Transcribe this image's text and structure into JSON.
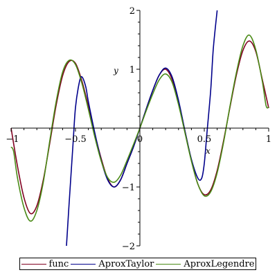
{
  "chart_data": {
    "type": "line",
    "xlabel": "x",
    "ylabel": "y",
    "xlim": [
      -1,
      1
    ],
    "ylim": [
      -2,
      2
    ],
    "xticks": [
      {
        "value": -1,
        "label": "−1"
      },
      {
        "value": -0.5,
        "label": "−0.5"
      },
      {
        "value": 0,
        "label": "0"
      },
      {
        "value": 0.5,
        "label": "0.5"
      },
      {
        "value": 1,
        "label": "1"
      }
    ],
    "yticks": [
      {
        "value": -2,
        "label": "−2"
      },
      {
        "value": -1,
        "label": "−1"
      },
      {
        "value": 1,
        "label": "1"
      },
      {
        "value": 2,
        "label": "2"
      }
    ],
    "legend_position": "bottom",
    "series": [
      {
        "name": "func",
        "color": "#800020",
        "x": [
          -1,
          -0.95,
          -0.9,
          -0.85,
          -0.8,
          -0.75,
          -0.7,
          -0.65,
          -0.6,
          -0.55,
          -0.5,
          -0.45,
          -0.4,
          -0.35,
          -0.3,
          -0.25,
          -0.2,
          -0.15,
          -0.1,
          -0.05,
          0,
          0.05,
          0.1,
          0.15,
          0.2,
          0.25,
          0.3,
          0.35,
          0.4,
          0.45,
          0.5,
          0.55,
          0.6,
          0.65,
          0.7,
          0.75,
          0.8,
          0.85,
          0.9,
          0.95,
          1
        ],
        "values": [
          0,
          -0.65,
          -1.18,
          -1.45,
          -1.32,
          -0.88,
          -0.26,
          0.39,
          0.89,
          1.13,
          1.1,
          0.8,
          0.37,
          -0.1,
          -0.52,
          -0.86,
          -1.0,
          -0.88,
          -0.6,
          -0.32,
          0,
          0.33,
          0.64,
          0.9,
          1.0,
          0.83,
          0.45,
          -0.05,
          -0.55,
          -0.95,
          -1.13,
          -1.05,
          -0.72,
          -0.21,
          0.36,
          0.91,
          1.32,
          1.48,
          1.3,
          0.83,
          0.34
        ]
      },
      {
        "name": "AproxTaylor",
        "color": "#00008b",
        "x": [
          -0.57,
          -0.55,
          -0.52,
          -0.5,
          -0.47,
          -0.45,
          -0.42,
          -0.4,
          -0.35,
          -0.3,
          -0.25,
          -0.2,
          -0.15,
          -0.1,
          -0.05,
          0,
          0.05,
          0.1,
          0.15,
          0.2,
          0.25,
          0.3,
          0.35,
          0.4,
          0.45,
          0.48,
          0.5,
          0.52,
          0.55,
          0.57,
          0.6
        ],
        "values": [
          -2.0,
          -1.3,
          -0.3,
          0.35,
          0.78,
          0.87,
          0.7,
          0.45,
          -0.08,
          -0.55,
          -0.88,
          -1.0,
          -0.88,
          -0.6,
          -0.32,
          0,
          0.33,
          0.64,
          0.9,
          1.02,
          0.87,
          0.47,
          -0.05,
          -0.53,
          -0.85,
          -0.85,
          -0.6,
          -0.1,
          0.65,
          1.35,
          2.0
        ]
      },
      {
        "name": "AproxLegendre",
        "color": "#4a8a16",
        "x": [
          -1,
          -0.98,
          -0.95,
          -0.9,
          -0.85,
          -0.8,
          -0.75,
          -0.7,
          -0.65,
          -0.6,
          -0.55,
          -0.5,
          -0.45,
          -0.4,
          -0.35,
          -0.3,
          -0.25,
          -0.2,
          -0.15,
          -0.1,
          -0.05,
          0,
          0.05,
          0.1,
          0.15,
          0.2,
          0.25,
          0.3,
          0.35,
          0.4,
          0.45,
          0.5,
          0.55,
          0.6,
          0.65,
          0.7,
          0.75,
          0.8,
          0.85,
          0.9,
          0.95,
          0.98,
          1
        ],
        "values": [
          -0.32,
          -0.4,
          -0.85,
          -1.35,
          -1.58,
          -1.4,
          -0.92,
          -0.22,
          0.45,
          0.95,
          1.15,
          1.08,
          0.76,
          0.32,
          -0.15,
          -0.56,
          -0.84,
          -0.92,
          -0.8,
          -0.55,
          -0.28,
          0,
          0.3,
          0.58,
          0.82,
          0.92,
          0.78,
          0.4,
          -0.08,
          -0.56,
          -0.95,
          -1.15,
          -1.08,
          -0.76,
          -0.24,
          0.38,
          0.95,
          1.4,
          1.58,
          1.33,
          0.8,
          0.38,
          0.36
        ]
      }
    ]
  }
}
